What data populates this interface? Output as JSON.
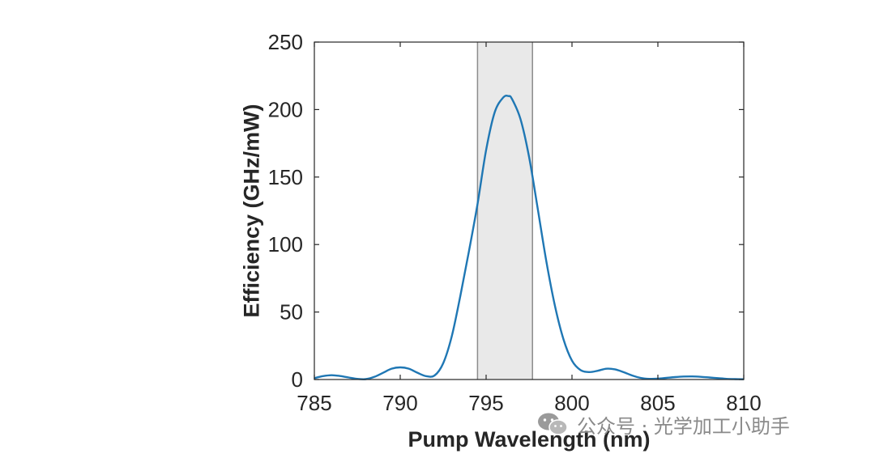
{
  "chart_data": {
    "type": "line",
    "title": "",
    "xlabel": "Pump Wavelength (nm)",
    "ylabel": "Efficiency (GHz/mW)",
    "xlim": [
      785,
      810
    ],
    "ylim": [
      0,
      250
    ],
    "xticks": [
      "785",
      "790",
      "795",
      "800",
      "805",
      "810"
    ],
    "yticks": [
      "0",
      "50",
      "100",
      "150",
      "200",
      "250"
    ],
    "grid": false,
    "legend": "none",
    "shaded_band": {
      "x_range": [
        794.5,
        797.7
      ],
      "color": "#e9e9e9",
      "edge_color": "#8c8c8c"
    },
    "series": [
      {
        "color": "#1f77b4",
        "x": [
          785,
          785.5,
          786,
          786.5,
          787,
          787.5,
          788,
          788.5,
          789,
          789.5,
          790,
          790.5,
          791,
          791.5,
          792,
          792.5,
          793,
          793.5,
          794,
          794.5,
          795,
          795.5,
          796,
          796.3,
          796.5,
          797,
          797.5,
          798,
          798.5,
          799,
          799.5,
          800,
          800.5,
          801,
          801.5,
          802,
          802.5,
          803,
          803.5,
          804,
          804.5,
          805,
          805.5,
          806,
          806.5,
          807,
          807.5,
          808,
          808.5,
          809,
          809.5,
          810
        ],
        "values": [
          1,
          2.5,
          3.2,
          2.6,
          1.5,
          0.5,
          0.3,
          2,
          5,
          8,
          9,
          8,
          5,
          2.5,
          3,
          12,
          32,
          62,
          95,
          130,
          170,
          198,
          209,
          210,
          208,
          193,
          165,
          127,
          88,
          55,
          30,
          14,
          7,
          5.5,
          6.5,
          8,
          7.5,
          5.5,
          3,
          1.2,
          0.5,
          0.6,
          1.2,
          1.8,
          2.2,
          2.3,
          2,
          1.5,
          1,
          0.5,
          0.3,
          0.2
        ]
      }
    ]
  },
  "watermark": {
    "icon": "wechat-icon",
    "text": "公众号 · 光学加工小助手"
  }
}
